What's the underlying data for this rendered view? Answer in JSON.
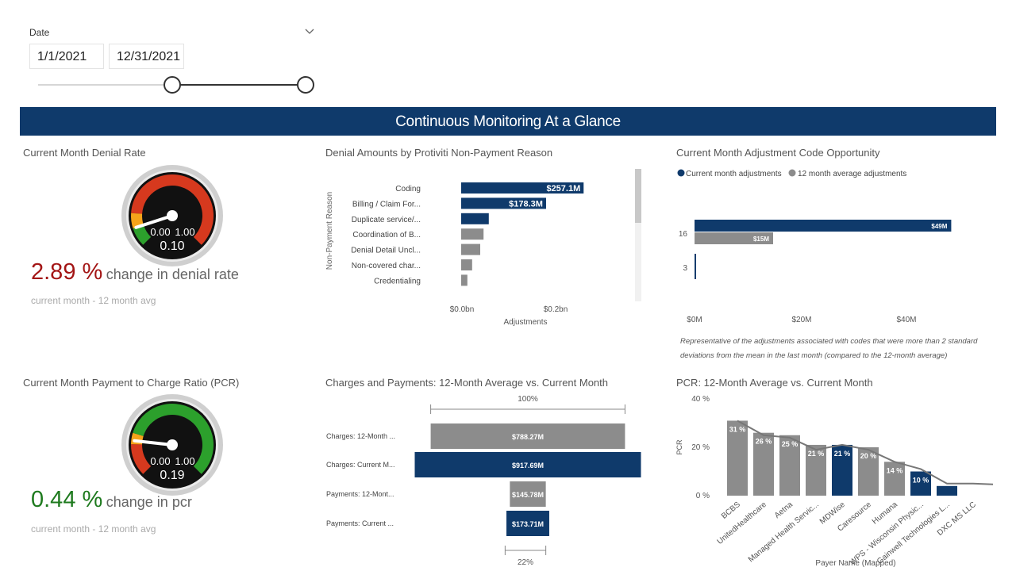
{
  "filter": {
    "label": "Date",
    "start": "1/1/2021",
    "end": "12/31/2021"
  },
  "banner": "Continuous Monitoring At a Glance",
  "denial_gauge": {
    "title": "Current Month Denial Rate",
    "value": "0.10",
    "min_label": "0.00",
    "max_label": "1.00",
    "pct": "2.89 %",
    "change_text": "change in denial rate",
    "subtext": "current month - 12 month avg",
    "pct_color": "#a31515",
    "needle_fraction": 0.1
  },
  "pcr_gauge": {
    "title": "Current Month Payment to Charge Ratio (PCR)",
    "value": "0.19",
    "min_label": "0.00",
    "max_label": "1.00",
    "pct": "0.44 %",
    "change_text": "change in pcr",
    "subtext": "current month - 12 month avg",
    "pct_color": "#1e7a1e",
    "needle_fraction": 0.19
  },
  "colors": {
    "navy": "#0f3a6b",
    "gray": "#8c8c8c",
    "red": "#d6391e",
    "green": "#2ca02c",
    "orange": "#f5a31a"
  },
  "chart_data": [
    {
      "type": "bar",
      "title": "Denial Amounts by Protiviti Non-Payment Reason",
      "orientation": "horizontal",
      "xlabel": "Adjustments",
      "ylabel": "Non-Payment Reason",
      "xlim": [
        0,
        0.3
      ],
      "xticks": [
        "$0.0bn",
        "$0.2bn"
      ],
      "categories": [
        "Coding",
        "Billing / Claim For...",
        "Duplicate service/...",
        "Coordination of B...",
        "Denial Detail Uncl...",
        "Non-covered char...",
        "Credentialing"
      ],
      "values": [
        0.2571,
        0.1783,
        0.058,
        0.047,
        0.04,
        0.023,
        0.013
      ],
      "data_labels": [
        "$257.1M",
        "$178.3M",
        "",
        "",
        "",
        "",
        ""
      ],
      "highlight": [
        true,
        true,
        true,
        false,
        false,
        false,
        false
      ]
    },
    {
      "type": "bar",
      "title": "Current Month Adjustment Code Opportunity",
      "orientation": "horizontal",
      "legend_position": "top-left",
      "xlim": [
        0,
        50
      ],
      "xticks": [
        "$0M",
        "$20M",
        "$40M"
      ],
      "categories": [
        "16",
        "3"
      ],
      "series": [
        {
          "name": "Current month adjustments",
          "values": [
            49,
            0.3
          ],
          "labels": [
            "$49M",
            ""
          ]
        },
        {
          "name": "12 month average adjustments",
          "values": [
            15,
            0
          ],
          "labels": [
            "$15M",
            ""
          ]
        }
      ],
      "note": "Representative of the adjustments associated with codes that were more than 2 standard deviations from the mean in the last month (compared to the 12-month average)"
    },
    {
      "type": "bar",
      "title": "Charges and Payments: 12-Month Average vs. Current Month",
      "orientation": "horizontal-funnel",
      "top_label": "100%",
      "bottom_label": "22%",
      "categories": [
        "Charges: 12-Month ...",
        "Charges: Current M...",
        "Payments: 12-Mont...",
        "Payments: Current ..."
      ],
      "values": [
        788.27,
        917.69,
        145.78,
        173.71
      ],
      "data_labels": [
        "$788.27M",
        "$917.69M",
        "$145.78M",
        "$173.71M"
      ],
      "highlight": [
        false,
        true,
        false,
        true
      ]
    },
    {
      "type": "bar",
      "title": "PCR: 12-Month Average vs. Current Month",
      "xlabel": "Payer Name (Mapped)",
      "ylabel": "PCR",
      "ylim": [
        0,
        40
      ],
      "yticks": [
        "0 %",
        "20 %",
        "40 %"
      ],
      "categories": [
        "BCBS",
        "UnitedHealthcare",
        "Aetna",
        "Managed Health Servic...",
        "MDWise",
        "Caresource",
        "Humana",
        "WPS - Wisconsin Physic...",
        "Gainwell Technologies L...",
        "DXC MS LLC"
      ],
      "values": [
        31,
        26,
        25,
        21,
        21,
        20,
        14,
        10,
        4,
        0
      ],
      "data_labels": [
        "31 %",
        "26 %",
        "25 %",
        "21 %",
        "21 %",
        "20 %",
        "14 %",
        "10 %",
        "",
        ""
      ],
      "highlight": [
        false,
        false,
        false,
        false,
        true,
        false,
        false,
        true,
        true,
        false
      ],
      "line_values": [
        31,
        25,
        24,
        19,
        21,
        19,
        14,
        11,
        5,
        5
      ]
    }
  ]
}
